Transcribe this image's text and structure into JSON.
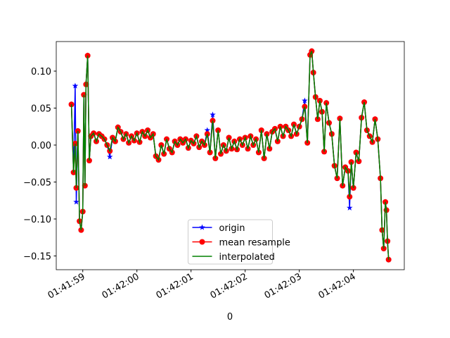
{
  "chart_data": {
    "type": "line",
    "x_label": "0",
    "x": [
      "01:41:58.79",
      "01:41:58.83",
      "01:41:58.86",
      "01:41:58.88",
      "01:41:58.91",
      "01:41:58.94",
      "01:41:58.97",
      "01:41:59.00",
      "01:41:59.02",
      "01:41:59.04",
      "01:41:59.06",
      "01:41:59.09",
      "01:41:59.12",
      "01:41:59.15",
      "01:41:59.20",
      "01:41:59.25",
      "01:41:59.30",
      "01:41:59.35",
      "01:41:59.40",
      "01:41:59.45",
      "01:41:59.50",
      "01:41:59.55",
      "01:41:59.60",
      "01:41:59.65",
      "01:41:59.70",
      "01:41:59.75",
      "01:41:59.80",
      "01:41:59.85",
      "01:41:59.90",
      "01:41:59.95",
      "01:42:00.00",
      "01:42:00.05",
      "01:42:00.10",
      "01:42:00.15",
      "01:42:00.20",
      "01:42:00.25",
      "01:42:00.30",
      "01:42:00.35",
      "01:42:00.40",
      "01:42:00.45",
      "01:42:00.50",
      "01:42:00.55",
      "01:42:00.60",
      "01:42:00.65",
      "01:42:00.70",
      "01:42:00.75",
      "01:42:00.80",
      "01:42:00.85",
      "01:42:00.90",
      "01:42:00.95",
      "01:42:01.00",
      "01:42:01.05",
      "01:42:01.10",
      "01:42:01.15",
      "01:42:01.20",
      "01:42:01.25",
      "01:42:01.30",
      "01:42:01.35",
      "01:42:01.40",
      "01:42:01.45",
      "01:42:01.50",
      "01:42:01.55",
      "01:42:01.60",
      "01:42:01.65",
      "01:42:01.70",
      "01:42:01.75",
      "01:42:01.80",
      "01:42:01.85",
      "01:42:01.90",
      "01:42:01.95",
      "01:42:02.00",
      "01:42:02.05",
      "01:42:02.10",
      "01:42:02.15",
      "01:42:02.20",
      "01:42:02.25",
      "01:42:02.30",
      "01:42:02.35",
      "01:42:02.40",
      "01:42:02.45",
      "01:42:02.50",
      "01:42:02.55",
      "01:42:02.60",
      "01:42:02.65",
      "01:42:02.70",
      "01:42:02.75",
      "01:42:02.80",
      "01:42:02.85",
      "01:42:02.90",
      "01:42:02.95",
      "01:42:03.00",
      "01:42:03.05",
      "01:42:03.10",
      "01:42:03.15",
      "01:42:03.20",
      "01:42:03.23",
      "01:42:03.26",
      "01:42:03.30",
      "01:42:03.34",
      "01:42:03.38",
      "01:42:03.42",
      "01:42:03.46",
      "01:42:03.50",
      "01:42:03.55",
      "01:42:03.60",
      "01:42:03.65",
      "01:42:03.70",
      "01:42:03.75",
      "01:42:03.80",
      "01:42:03.85",
      "01:42:03.90",
      "01:42:03.93",
      "01:42:03.96",
      "01:42:04.00",
      "01:42:04.05",
      "01:42:04.10",
      "01:42:04.15",
      "01:42:04.20",
      "01:42:04.25",
      "01:42:04.30",
      "01:42:04.35",
      "01:42:04.40",
      "01:42:04.45",
      "01:42:04.50",
      "01:42:04.53",
      "01:42:04.56",
      "01:42:04.59",
      "01:42:04.61",
      "01:42:04.63",
      "01:42:04.65"
    ],
    "series": [
      {
        "name": "origin",
        "color": "#0000ff",
        "marker": "star",
        "values": [
          0.055,
          -0.037,
          0.08,
          -0.077,
          0.019,
          -0.103,
          -0.115,
          -0.09,
          0.068,
          -0.055,
          0.082,
          0.121,
          -0.021,
          0.012,
          0.016,
          0.005,
          0.015,
          0.012,
          0.008,
          0.0,
          -0.016,
          0.01,
          0.005,
          0.024,
          0.018,
          0.008,
          0.015,
          0.003,
          0.012,
          0.006,
          0.016,
          0.004,
          0.018,
          0.012,
          0.02,
          0.01,
          0.015,
          -0.015,
          -0.02,
          0.0,
          -0.012,
          0.008,
          -0.005,
          -0.01,
          0.005,
          0.0,
          0.008,
          0.003,
          0.008,
          -0.004,
          0.006,
          0.002,
          0.012,
          -0.003,
          0.005,
          0.0,
          0.02,
          -0.01,
          0.041,
          -0.018,
          0.02,
          -0.012,
          0.0,
          -0.008,
          0.01,
          -0.005,
          0.005,
          -0.006,
          0.008,
          0.0,
          0.01,
          -0.005,
          0.012,
          0.0,
          0.008,
          -0.01,
          0.02,
          -0.018,
          0.015,
          -0.005,
          0.018,
          0.022,
          0.005,
          0.025,
          0.012,
          0.025,
          0.02,
          0.012,
          0.028,
          0.015,
          0.025,
          0.035,
          0.06,
          0.003,
          0.122,
          0.127,
          0.098,
          0.065,
          0.035,
          0.06,
          0.045,
          -0.009,
          0.057,
          0.03,
          0.015,
          -0.028,
          -0.045,
          0.036,
          -0.055,
          -0.03,
          -0.035,
          -0.085,
          -0.023,
          -0.058,
          -0.01,
          -0.022,
          0.037,
          0.058,
          0.02,
          0.012,
          0.004,
          0.035,
          0.008,
          -0.045,
          -0.115,
          -0.14,
          -0.077,
          -0.088,
          -0.13,
          -0.155
        ]
      },
      {
        "name": "mean resample",
        "color": "#ff0000",
        "marker": "circle",
        "values": [
          0.055,
          -0.037,
          0.002,
          -0.058,
          0.019,
          -0.103,
          -0.115,
          -0.09,
          0.068,
          -0.055,
          0.082,
          0.121,
          -0.021,
          0.012,
          0.016,
          0.005,
          0.015,
          0.012,
          0.008,
          0.0,
          -0.008,
          0.01,
          0.005,
          0.024,
          0.018,
          0.008,
          0.015,
          0.003,
          0.012,
          0.006,
          0.016,
          0.004,
          0.018,
          0.012,
          0.02,
          0.01,
          0.015,
          -0.015,
          -0.02,
          0.0,
          -0.012,
          0.008,
          -0.005,
          -0.01,
          0.005,
          0.0,
          0.008,
          0.003,
          0.008,
          -0.004,
          0.006,
          0.002,
          0.012,
          -0.003,
          0.005,
          0.0,
          0.015,
          -0.01,
          0.033,
          -0.018,
          0.02,
          -0.012,
          0.0,
          -0.008,
          0.01,
          -0.005,
          0.005,
          -0.006,
          0.008,
          0.0,
          0.01,
          -0.005,
          0.012,
          0.0,
          0.008,
          -0.01,
          0.02,
          -0.018,
          0.015,
          -0.005,
          0.018,
          0.022,
          0.005,
          0.025,
          0.012,
          0.025,
          0.02,
          0.012,
          0.028,
          0.015,
          0.025,
          0.035,
          0.052,
          0.003,
          0.122,
          0.127,
          0.098,
          0.065,
          0.035,
          0.06,
          0.045,
          -0.009,
          0.057,
          0.03,
          0.015,
          -0.028,
          -0.045,
          0.036,
          -0.055,
          -0.03,
          -0.035,
          -0.07,
          -0.023,
          -0.058,
          -0.01,
          -0.022,
          0.037,
          0.058,
          0.02,
          0.012,
          0.004,
          0.035,
          0.008,
          -0.045,
          -0.115,
          -0.14,
          -0.077,
          -0.088,
          -0.13,
          -0.155
        ]
      },
      {
        "name": "interpolated",
        "color": "#008000",
        "marker": "none",
        "values": [
          0.055,
          -0.037,
          0.002,
          -0.058,
          0.019,
          -0.103,
          -0.115,
          -0.09,
          0.068,
          -0.055,
          0.082,
          0.121,
          -0.021,
          0.012,
          0.016,
          0.005,
          0.015,
          0.012,
          0.008,
          0.0,
          -0.008,
          0.01,
          0.005,
          0.024,
          0.018,
          0.008,
          0.015,
          0.003,
          0.012,
          0.006,
          0.016,
          0.004,
          0.018,
          0.012,
          0.02,
          0.01,
          0.015,
          -0.015,
          -0.02,
          0.0,
          -0.012,
          0.008,
          -0.005,
          -0.01,
          0.005,
          0.0,
          0.008,
          0.003,
          0.008,
          -0.004,
          0.006,
          0.002,
          0.012,
          -0.003,
          0.005,
          0.0,
          0.015,
          -0.01,
          0.033,
          -0.018,
          0.02,
          -0.012,
          0.0,
          -0.008,
          0.01,
          -0.005,
          0.005,
          -0.006,
          0.008,
          0.0,
          0.01,
          -0.005,
          0.012,
          0.0,
          0.008,
          -0.01,
          0.02,
          -0.018,
          0.015,
          -0.005,
          0.018,
          0.022,
          0.005,
          0.025,
          0.012,
          0.025,
          0.02,
          0.012,
          0.028,
          0.015,
          0.025,
          0.035,
          0.052,
          0.003,
          0.122,
          0.127,
          0.098,
          0.065,
          0.035,
          0.06,
          0.045,
          -0.009,
          0.057,
          0.03,
          0.015,
          -0.028,
          -0.045,
          0.036,
          -0.055,
          -0.03,
          -0.035,
          -0.07,
          -0.023,
          -0.058,
          -0.01,
          -0.022,
          0.037,
          0.058,
          0.02,
          0.012,
          0.004,
          0.035,
          0.008,
          -0.045,
          -0.115,
          -0.14,
          -0.077,
          -0.088,
          -0.13,
          -0.155
        ]
      }
    ],
    "xlim": [
      "01:41:58.51",
      "01:42:04.94"
    ],
    "xticks": [
      "01:41:59",
      "01:42:00",
      "01:42:01",
      "01:42:02",
      "01:42:03",
      "01:42:04"
    ],
    "ylim": [
      -0.1686,
      0.14
    ],
    "yticks": [
      {
        "value": -0.15,
        "label": "−0.15"
      },
      {
        "value": -0.1,
        "label": "−0.10"
      },
      {
        "value": -0.05,
        "label": "−0.05"
      },
      {
        "value": 0,
        "label": "0.00"
      },
      {
        "value": 0.05,
        "label": "0.05"
      },
      {
        "value": 0.1,
        "label": "0.10"
      }
    ],
    "grid": false,
    "legend": "lower center"
  }
}
